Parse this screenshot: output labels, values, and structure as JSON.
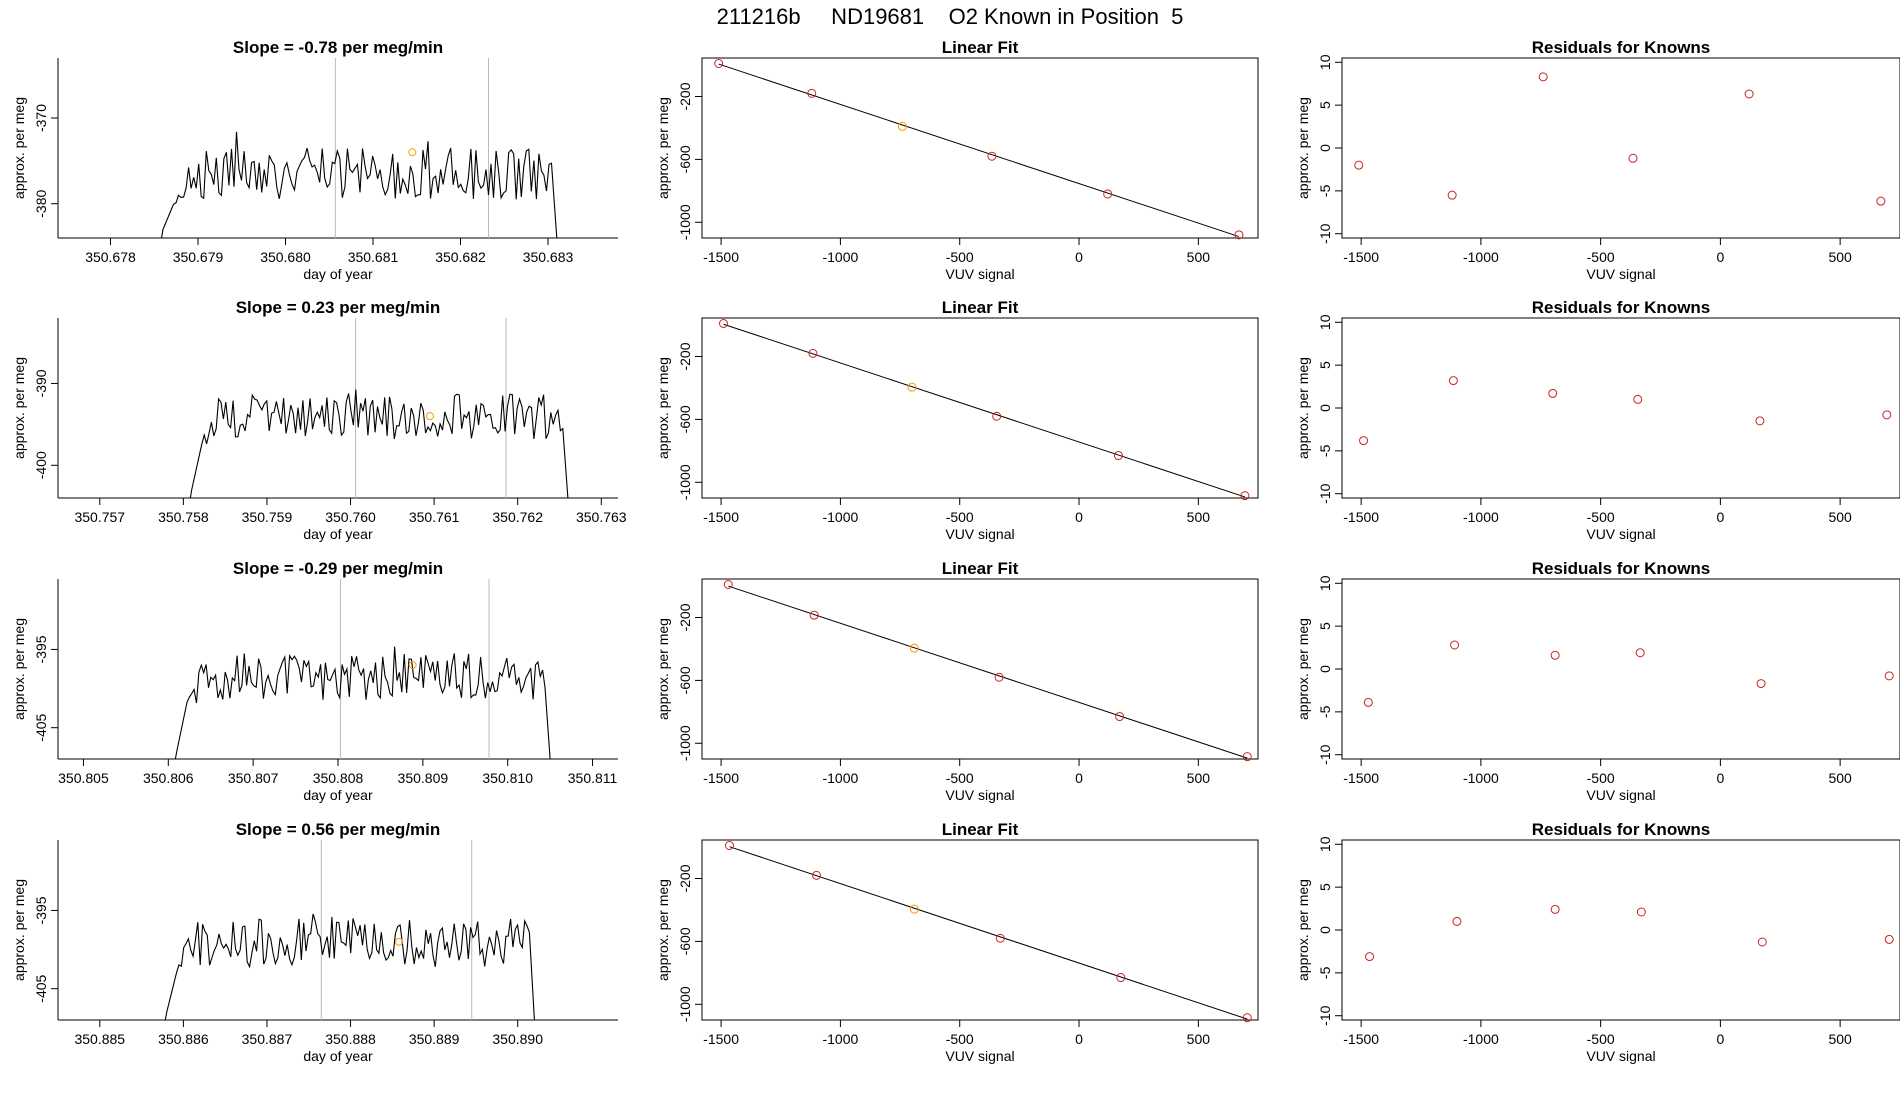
{
  "title": "211216b     ND19681    O2 Known in Position  5",
  "colors": {
    "line": "#000000",
    "vline": "#bbbbbb",
    "known": "#cc2222",
    "highlight": "#ff9900"
  },
  "chart_data": [
    {
      "type": "line",
      "title": "Slope =  -0.78  per meg/min",
      "xlabel": "day of year",
      "ylabel": "approx. per meg",
      "xlim": [
        350.6774,
        350.6838
      ],
      "ylim": [
        -384,
        -363
      ],
      "xticks": [
        "350.678",
        "350.679",
        "350.680",
        "350.681",
        "350.682",
        "350.683"
      ],
      "yticks": [
        "-370",
        "-380"
      ],
      "vlines": [
        350.68057,
        350.68232
      ],
      "trace_start": 350.6786,
      "trace_end": 350.6831,
      "trace_edges": [
        -383,
        -384
      ],
      "trace_baseline": -376.5,
      "trace_amplitude": 3.0,
      "highlight": {
        "x": 350.68145,
        "y": -374
      }
    },
    {
      "type": "scatter",
      "title": "Linear Fit",
      "xlabel": "VUV signal",
      "ylabel": "approx. per meg",
      "xlim": [
        -1580,
        750
      ],
      "ylim": [
        -1100,
        45
      ],
      "xticks": [
        "-1500",
        "-1000",
        "-500",
        "0",
        "500"
      ],
      "yticks": [
        "-200",
        "-600",
        "-1000"
      ],
      "x": [
        -1510,
        -1120,
        -740,
        -365,
        120,
        670
      ],
      "y": [
        10,
        -180,
        -390,
        -580,
        -820,
        -1080
      ],
      "highlight_index": 2
    },
    {
      "type": "scatter",
      "title": "Residuals for Knowns",
      "xlabel": "VUV signal",
      "ylabel": "approx. per meg",
      "xlim": [
        -1580,
        750
      ],
      "ylim": [
        -10.5,
        10.5
      ],
      "xticks": [
        "-1500",
        "-1000",
        "-500",
        "0",
        "500"
      ],
      "yticks": [
        "10",
        "5",
        "0",
        "-5",
        "-10"
      ],
      "x": [
        -1510,
        -1120,
        -740,
        -365,
        120,
        670
      ],
      "y": [
        -2,
        -5.5,
        8.3,
        -1.2,
        6.3,
        -6.2
      ]
    },
    {
      "type": "line",
      "title": "Slope =  0.23  per meg/min",
      "xlabel": "day of year",
      "ylabel": "approx. per meg",
      "xlim": [
        350.7565,
        350.7632
      ],
      "ylim": [
        -404,
        -382
      ],
      "xticks": [
        "350.757",
        "350.758",
        "350.759",
        "350.760",
        "350.761",
        "350.762",
        "350.763"
      ],
      "yticks": [
        "-390",
        "-400"
      ],
      "vlines": [
        350.76006,
        350.76186
      ],
      "trace_start": 350.7581,
      "trace_end": 350.7626,
      "trace_edges": [
        -403,
        -404
      ],
      "trace_baseline": -394,
      "trace_amplitude": 2.8,
      "highlight": {
        "x": 350.76095,
        "y": -394
      }
    },
    {
      "type": "scatter",
      "title": "Linear Fit",
      "xlabel": "VUV signal",
      "ylabel": "approx. per meg",
      "xlim": [
        -1580,
        750
      ],
      "ylim": [
        -1100,
        45
      ],
      "xticks": [
        "-1500",
        "-1000",
        "-500",
        "0",
        "500"
      ],
      "yticks": [
        "-200",
        "-600",
        "-1000"
      ],
      "x": [
        -1490,
        -1115,
        -700,
        -345,
        165,
        695
      ],
      "y": [
        10,
        -180,
        -395,
        -580,
        -830,
        -1085
      ],
      "highlight_index": 2
    },
    {
      "type": "scatter",
      "title": "Residuals for Knowns",
      "xlabel": "VUV signal",
      "ylabel": "approx. per meg",
      "xlim": [
        -1580,
        750
      ],
      "ylim": [
        -10.5,
        10.5
      ],
      "xticks": [
        "-1500",
        "-1000",
        "-500",
        "0",
        "500"
      ],
      "yticks": [
        "10",
        "5",
        "0",
        "-5",
        "-10"
      ],
      "x": [
        -1490,
        -1115,
        -700,
        -345,
        165,
        695
      ],
      "y": [
        -3.8,
        3.2,
        1.7,
        1.0,
        -1.5,
        -0.8
      ]
    },
    {
      "type": "line",
      "title": "Slope =  -0.29  per meg/min",
      "xlabel": "day of year",
      "ylabel": "approx. per meg",
      "xlim": [
        350.8047,
        350.8113
      ],
      "ylim": [
        -409,
        -386
      ],
      "xticks": [
        "350.805",
        "350.806",
        "350.807",
        "350.808",
        "350.809",
        "350.810",
        "350.811"
      ],
      "yticks": [
        "-395",
        "-405"
      ],
      "vlines": [
        350.80803,
        350.80978
      ],
      "trace_start": 350.8061,
      "trace_end": 350.8105,
      "trace_edges": [
        -408,
        -409
      ],
      "trace_baseline": -398.5,
      "trace_amplitude": 3.0,
      "highlight": {
        "x": 350.80888,
        "y": -397
      }
    },
    {
      "type": "scatter",
      "title": "Linear Fit",
      "xlabel": "VUV signal",
      "ylabel": "approx. per meg",
      "xlim": [
        -1580,
        750
      ],
      "ylim": [
        -1100,
        45
      ],
      "xticks": [
        "-1500",
        "-1000",
        "-500",
        "0",
        "500"
      ],
      "yticks": [
        "-200",
        "-600",
        "-1000"
      ],
      "x": [
        -1470,
        -1110,
        -690,
        -335,
        170,
        705
      ],
      "y": [
        10,
        -185,
        -395,
        -580,
        -830,
        -1085
      ],
      "highlight_index": 2
    },
    {
      "type": "scatter",
      "title": "Residuals for Knowns",
      "xlabel": "VUV signal",
      "ylabel": "approx. per meg",
      "xlim": [
        -1580,
        750
      ],
      "ylim": [
        -10.5,
        10.5
      ],
      "xticks": [
        "-1500",
        "-1000",
        "-500",
        "0",
        "500"
      ],
      "yticks": [
        "10",
        "5",
        "0",
        "-5",
        "-10"
      ],
      "x": [
        -1470,
        -1110,
        -690,
        -335,
        170,
        705
      ],
      "y": [
        -3.9,
        2.8,
        1.6,
        1.9,
        -1.7,
        -0.8
      ]
    },
    {
      "type": "line",
      "title": "Slope =  0.56  per meg/min",
      "xlabel": "day of year",
      "ylabel": "approx. per meg",
      "xlim": [
        350.8845,
        350.8912
      ],
      "ylim": [
        -409,
        -386
      ],
      "xticks": [
        "350.885",
        "350.886",
        "350.887",
        "350.888",
        "350.889",
        "350.890"
      ],
      "yticks": [
        "-395",
        "-405"
      ],
      "vlines": [
        350.88765,
        350.88945
      ],
      "trace_start": 350.8858,
      "trace_end": 350.8902,
      "trace_edges": [
        -408,
        -409
      ],
      "trace_baseline": -399,
      "trace_amplitude": 3.2,
      "highlight": {
        "x": 350.88858,
        "y": -399
      }
    },
    {
      "type": "scatter",
      "title": "Linear Fit",
      "xlabel": "VUV signal",
      "ylabel": "approx. per meg",
      "xlim": [
        -1580,
        750
      ],
      "ylim": [
        -1100,
        45
      ],
      "xticks": [
        "-1500",
        "-1000",
        "-500",
        "0",
        "500"
      ],
      "yticks": [
        "-200",
        "-600",
        "-1000"
      ],
      "x": [
        -1465,
        -1100,
        -690,
        -330,
        175,
        705
      ],
      "y": [
        10,
        -180,
        -395,
        -580,
        -830,
        -1085
      ],
      "highlight_index": 2
    },
    {
      "type": "scatter",
      "title": "Residuals for Knowns",
      "xlabel": "VUV signal",
      "ylabel": "approx. per meg",
      "xlim": [
        -1580,
        750
      ],
      "ylim": [
        -10.5,
        10.5
      ],
      "xticks": [
        "-1500",
        "-1000",
        "-500",
        "0",
        "500"
      ],
      "yticks": [
        "10",
        "5",
        "0",
        "-5",
        "-10"
      ],
      "x": [
        -1465,
        -1100,
        -690,
        -330,
        175,
        705
      ],
      "y": [
        -3.1,
        1.0,
        2.4,
        2.1,
        -1.4,
        -1.1
      ]
    }
  ]
}
